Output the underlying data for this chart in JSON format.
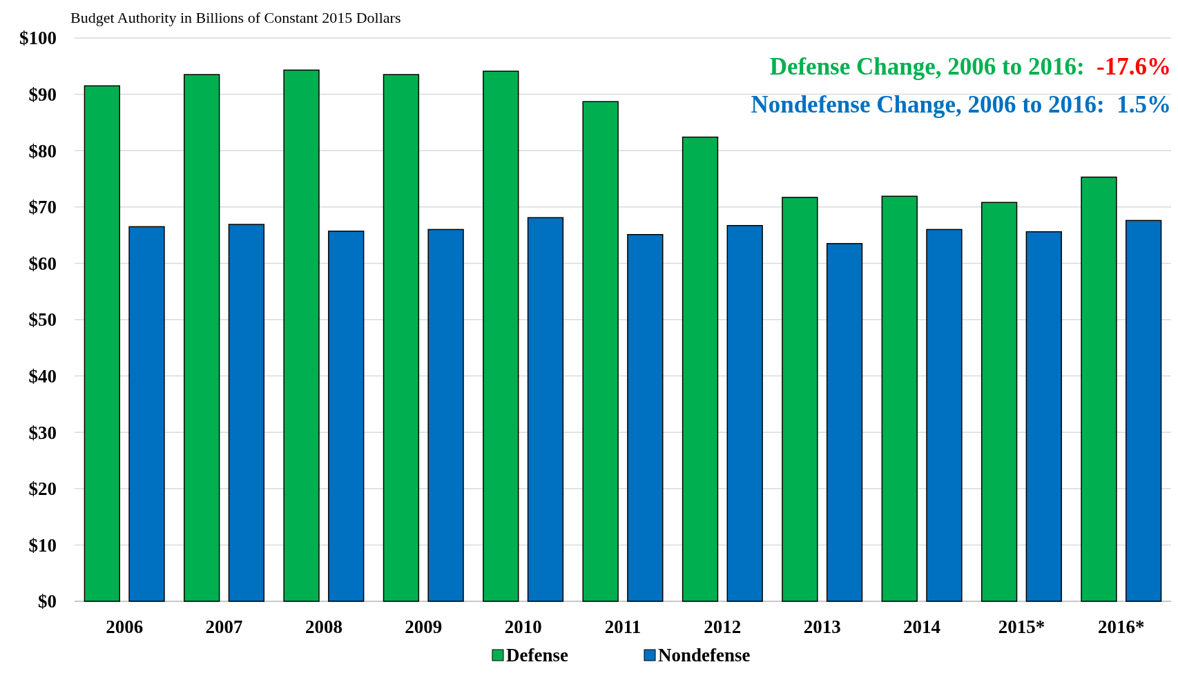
{
  "chart_data": {
    "type": "bar",
    "title": "Budget Authority in Billions of Constant 2015 Dollars",
    "categories": [
      "2006",
      "2007",
      "2008",
      "2009",
      "2010",
      "2011",
      "2012",
      "2013",
      "2014",
      "2015*",
      "2016*"
    ],
    "series": [
      {
        "name": "Defense",
        "color": "#00b050",
        "values": [
          91.5,
          93.5,
          94.3,
          93.5,
          94.1,
          88.7,
          82.4,
          71.7,
          71.9,
          70.8,
          75.3
        ]
      },
      {
        "name": "Nondefense",
        "color": "#0070c0",
        "values": [
          66.5,
          66.9,
          65.7,
          66.0,
          68.1,
          65.1,
          66.7,
          63.5,
          66.0,
          65.6,
          67.6
        ]
      }
    ],
    "ylim": [
      0,
      100
    ],
    "yticks": [
      {
        "value": 0,
        "label": "$0"
      },
      {
        "value": 10,
        "label": "$10"
      },
      {
        "value": 20,
        "label": "$20"
      },
      {
        "value": 30,
        "label": "$30"
      },
      {
        "value": 40,
        "label": "$40"
      },
      {
        "value": 50,
        "label": "$50"
      },
      {
        "value": 60,
        "label": "$60"
      },
      {
        "value": 70,
        "label": "$70"
      },
      {
        "value": 80,
        "label": "$80"
      },
      {
        "value": 90,
        "label": "$90"
      },
      {
        "value": 100,
        "label": "$100"
      }
    ],
    "grid": "y",
    "legend": "bottom",
    "annotations": [
      "Defense Change, 2006 to 2016:  -17.6%",
      "Nondefense Change, 2006 to 2016:  1.5%"
    ]
  }
}
